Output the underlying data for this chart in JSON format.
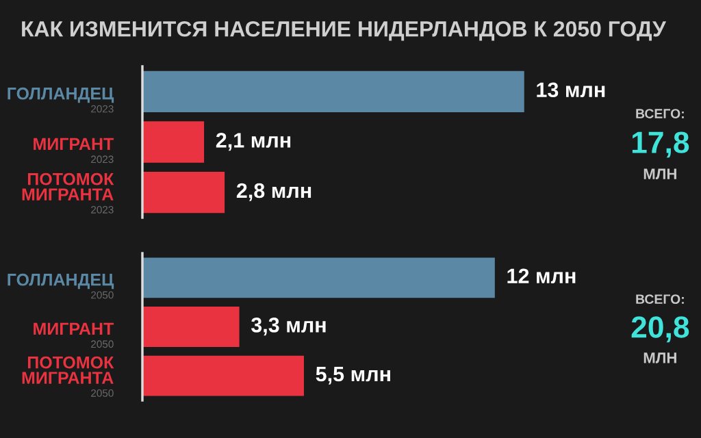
{
  "chart_data": [
    {
      "type": "bar",
      "orientation": "horizontal",
      "title": "КАК ИЗМЕНИТСЯ НАСЕЛЕНИЕ НИДЕРЛАНДОВ К 2050 ГОДУ",
      "categories": [
        "ГОЛЛАНДЕЦ\n2023",
        "МИГРАНТ\n2023",
        "ПОТОМОК\nМИГРАНТА\n2023"
      ],
      "values": [
        13,
        2.1,
        2.8
      ],
      "colors": [
        "#5b88a4",
        "#ea3340",
        "#ea3340"
      ],
      "value_labels": [
        "13 млн",
        "2,1 млн",
        "2,8 млн"
      ],
      "annotations": [
        "ВСЕГО:",
        "17,8",
        "МЛН"
      ],
      "tick_labels": "y"
    },
    {
      "type": "bar",
      "orientation": "horizontal",
      "categories": [
        "ГОЛЛАНДЕЦ\n2050",
        "МИГРАНТ\n2050",
        "ПОТОМОК\nМИГРАНТА\n2050"
      ],
      "values": [
        12,
        3.3,
        5.5
      ],
      "colors": [
        "#5b88a4",
        "#ea3340",
        "#ea3340"
      ],
      "value_labels": [
        "12 млн",
        "3,3 млн",
        "5,5 млн"
      ],
      "annotations": [
        "ВСЕГО:",
        "20,8",
        "МЛН"
      ],
      "tick_labels": "y"
    }
  ]
}
